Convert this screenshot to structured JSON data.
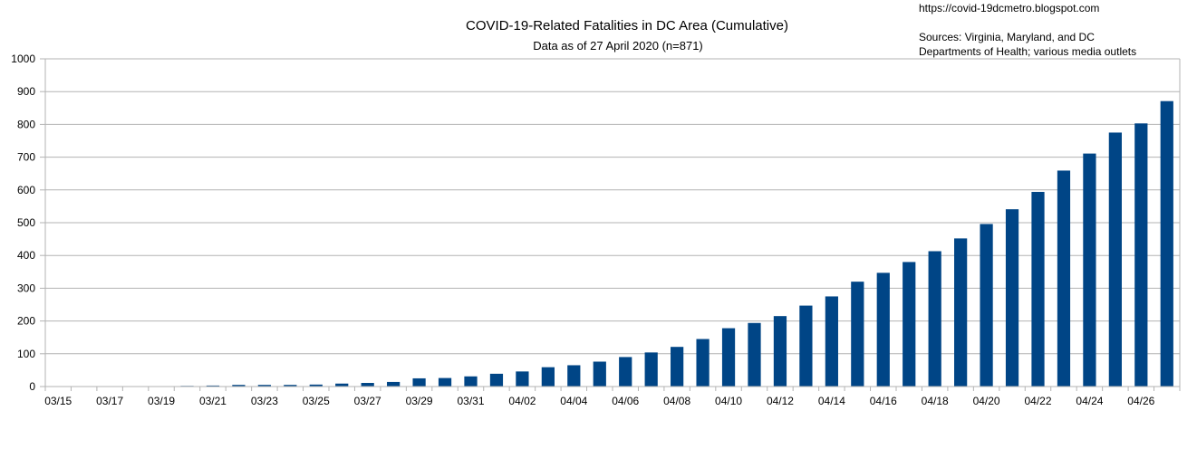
{
  "source_url": "https://covid-19dcmetro.blogspot.com",
  "sources_line1": "Sources: Virginia, Maryland, and DC",
  "sources_line2": "Departments of Health; various media outlets",
  "chart_data": {
    "type": "bar",
    "title": "COVID-19-Related Fatalities in DC Area (Cumulative)",
    "subtitle": "Data as of 27 April 2020 (n=871)",
    "xlabel": "",
    "ylabel": "",
    "ylim": [
      0,
      1000
    ],
    "yticks": [
      0,
      100,
      200,
      300,
      400,
      500,
      600,
      700,
      800,
      900,
      1000
    ],
    "grid": true,
    "bar_color": "#004586",
    "categories": [
      "03/15",
      "03/16",
      "03/17",
      "03/18",
      "03/19",
      "03/20",
      "03/21",
      "03/22",
      "03/23",
      "03/24",
      "03/25",
      "03/26",
      "03/27",
      "03/28",
      "03/29",
      "03/30",
      "03/31",
      "04/01",
      "04/02",
      "04/03",
      "04/04",
      "04/05",
      "04/06",
      "04/07",
      "04/08",
      "04/09",
      "04/10",
      "04/11",
      "04/12",
      "04/13",
      "04/14",
      "04/15",
      "04/16",
      "04/17",
      "04/18",
      "04/19",
      "04/20",
      "04/21",
      "04/22",
      "04/23",
      "04/24",
      "04/25",
      "04/26",
      "04/27"
    ],
    "tick_labels": [
      "03/15",
      "03/17",
      "03/19",
      "03/21",
      "03/23",
      "03/25",
      "03/27",
      "03/29",
      "03/31",
      "04/02",
      "04/04",
      "04/06",
      "04/08",
      "04/10",
      "04/12",
      "04/14",
      "04/16",
      "04/18",
      "04/20",
      "04/22",
      "04/24",
      "04/26"
    ],
    "values": [
      0,
      0,
      0,
      0,
      0,
      2,
      3,
      5,
      5,
      5,
      6,
      9,
      11,
      14,
      25,
      26,
      31,
      39,
      46,
      59,
      65,
      76,
      90,
      104,
      121,
      145,
      178,
      194,
      215,
      247,
      275,
      320,
      347,
      380,
      413,
      452,
      496,
      541,
      594,
      659,
      711,
      775,
      803,
      871
    ]
  }
}
